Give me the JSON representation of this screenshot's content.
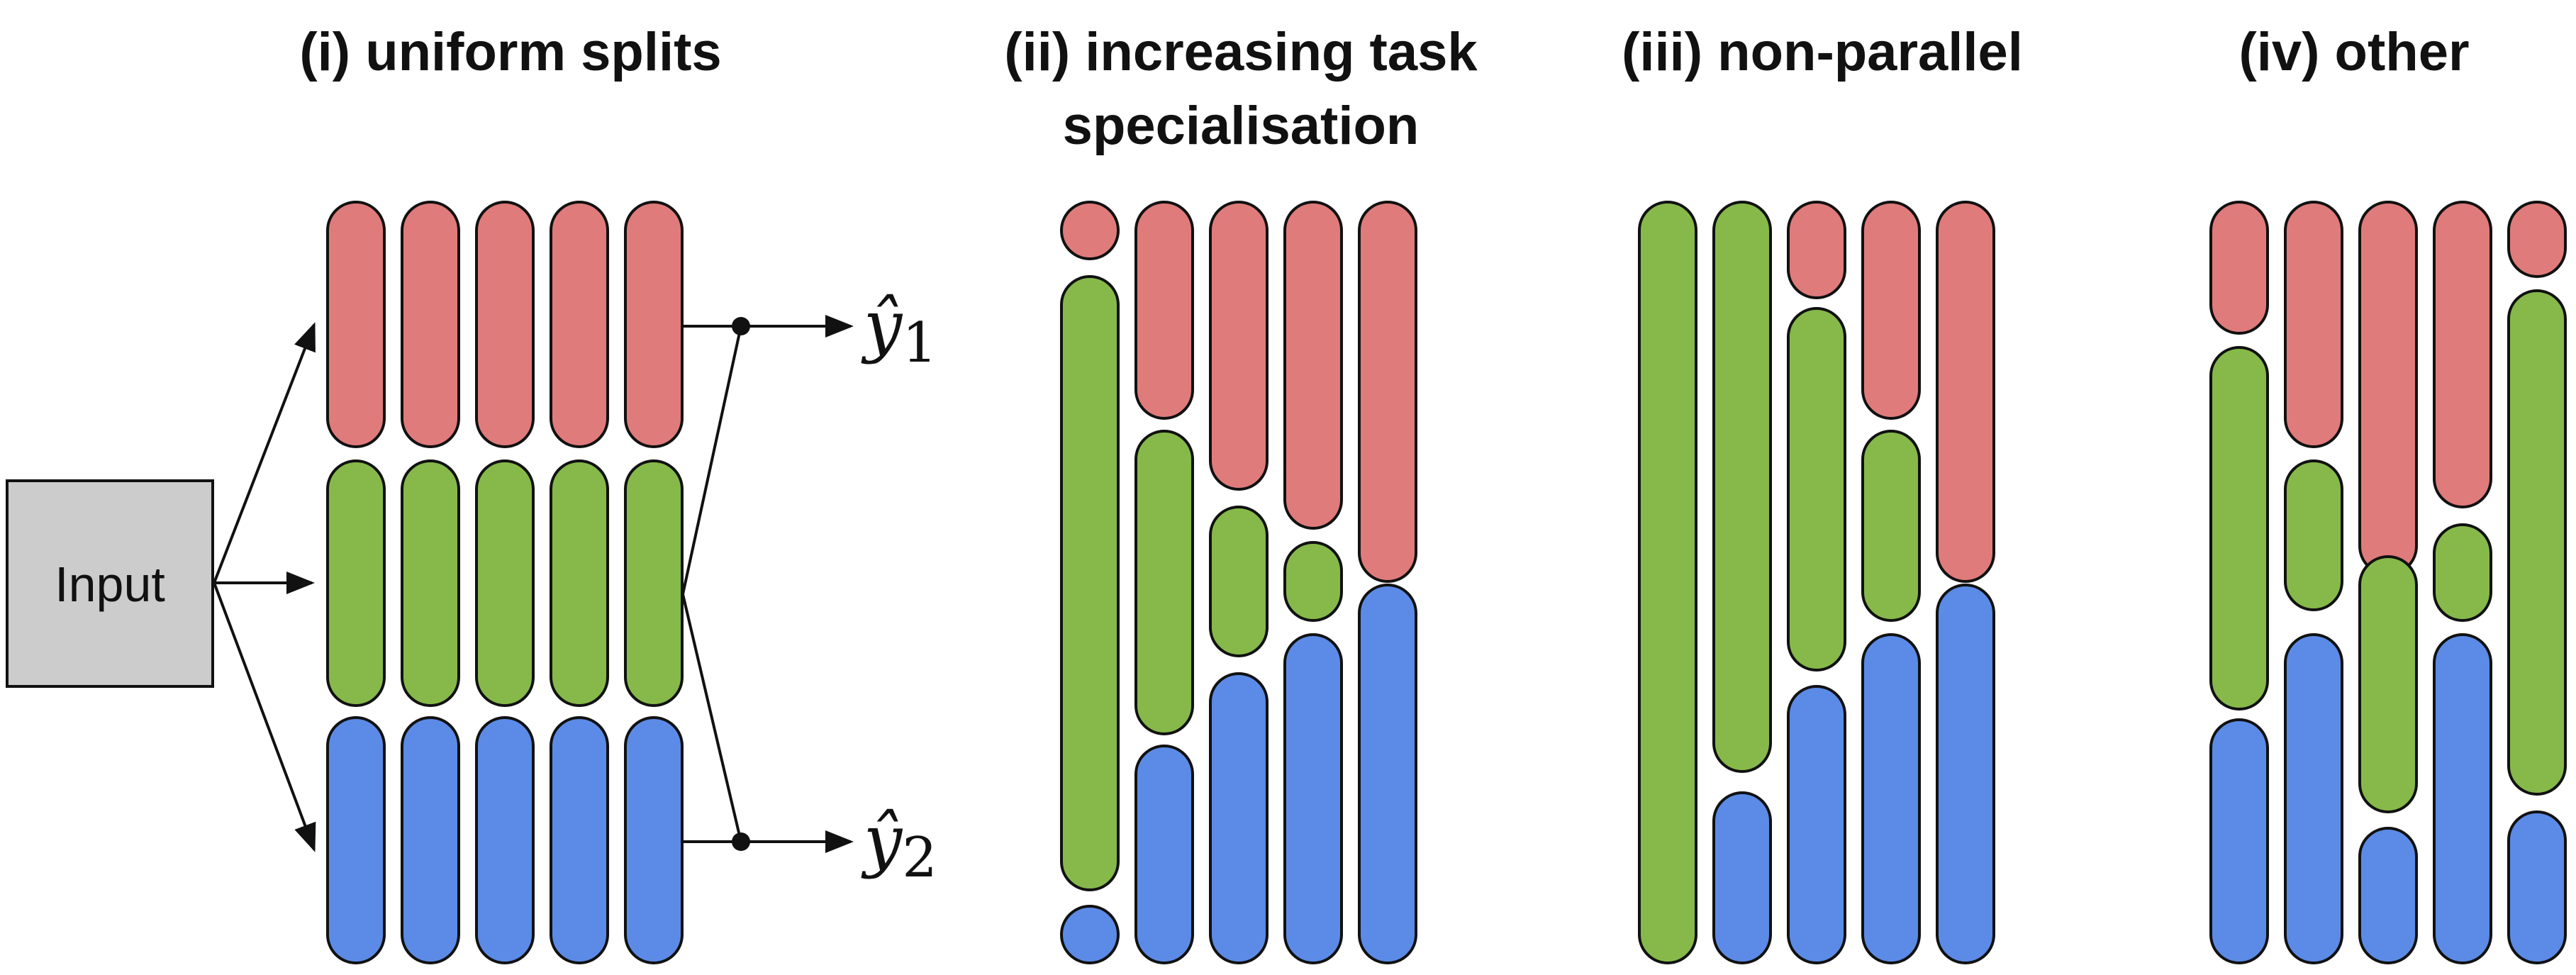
{
  "colors": {
    "task1": "#e07b7b",
    "task2": "#86b94a",
    "task3": "#5b8be6",
    "input_fill": "#cccccc",
    "stroke": "#111111"
  },
  "panels": [
    {
      "id": "uniform",
      "title": "(i) uniform splits"
    },
    {
      "id": "increasing",
      "title_line1": "(ii) increasing task",
      "title_line2": "specialisation"
    },
    {
      "id": "non-parallel",
      "title": "(iii) non-parallel"
    },
    {
      "id": "other",
      "title": "(iv) other"
    }
  ],
  "input": {
    "label": "Input"
  },
  "outputs": [
    {
      "symbol": "ŷ",
      "subscript": "1"
    },
    {
      "symbol": "ŷ",
      "subscript": "2"
    }
  ]
}
